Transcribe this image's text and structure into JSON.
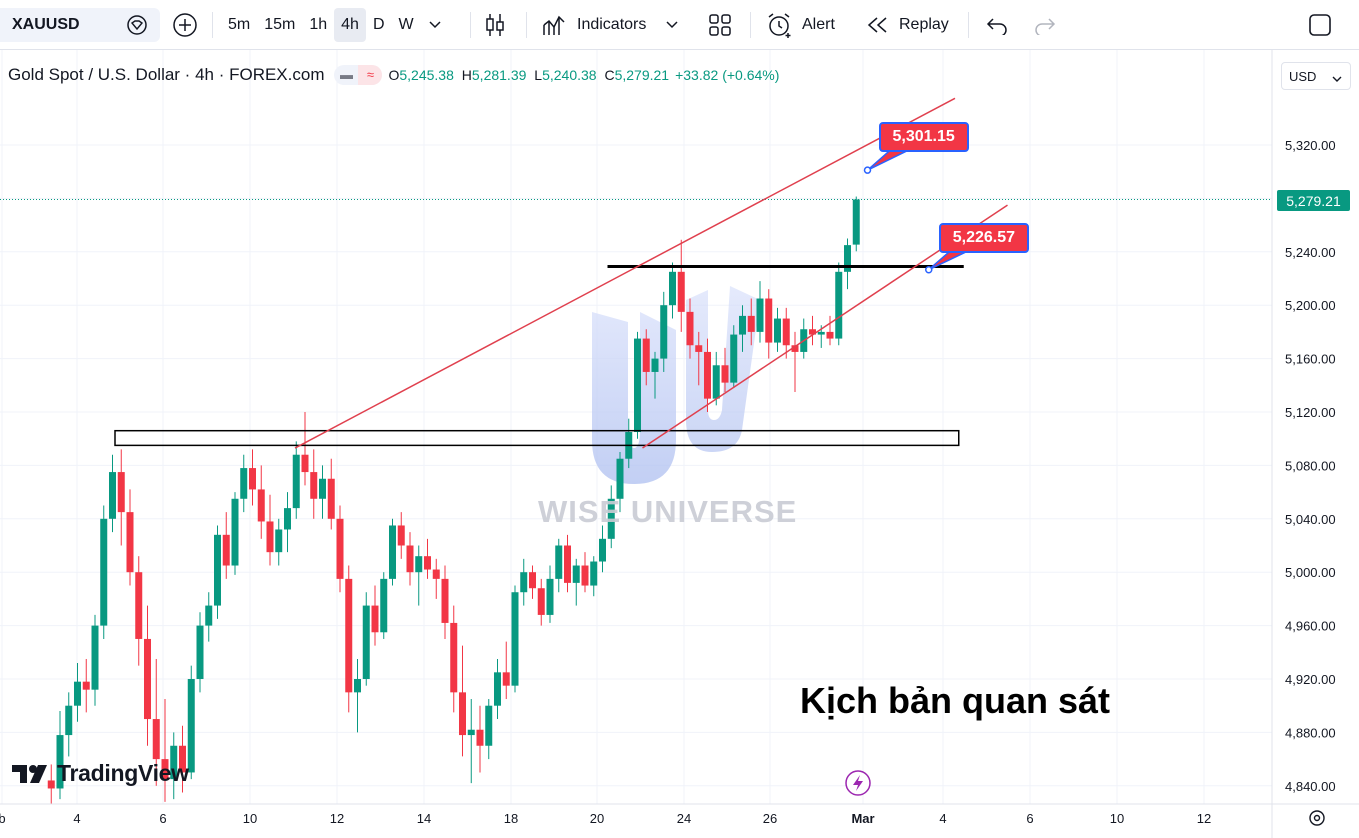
{
  "toolbar": {
    "symbol": "XAUUSD",
    "timeframes": [
      "5m",
      "15m",
      "1h",
      "4h",
      "D",
      "W"
    ],
    "active_timeframe": "4h",
    "indicators_label": "Indicators",
    "alert_label": "Alert",
    "replay_label": "Replay"
  },
  "legend": {
    "title": "Gold Spot / U.S. Dollar · 4h · FOREX.com",
    "o_label": "O",
    "o_value": "5,245.38",
    "h_label": "H",
    "h_value": "5,281.39",
    "l_label": "L",
    "l_value": "5,240.38",
    "c_label": "C",
    "c_value": "5,279.21",
    "change": "+33.82 (+0.64%)"
  },
  "currency": "USD",
  "watermark": "WISE UNIVERSE",
  "annotation_text": "Kịch bản quan sát",
  "branding": "TradingView",
  "colors": {
    "up": "#089981",
    "down": "#f23645",
    "trendline": "#e0404e",
    "accent": "#2962ff"
  },
  "chart_data": {
    "type": "candlestick",
    "timeframe": "4h",
    "x_tick_labels": [
      "b",
      "4",
      "6",
      "10",
      "12",
      "14",
      "18",
      "20",
      "24",
      "26",
      "Mar",
      "4",
      "6",
      "10",
      "12"
    ],
    "y_tick_labels": [
      "5,320.00",
      "5,280.00",
      "5,240.00",
      "5,200.00",
      "5,160.00",
      "5,120.00",
      "5,080.00",
      "5,040.00",
      "5,000.00",
      "4,960.00",
      "4,920.00",
      "4,880.00",
      "4,840.00"
    ],
    "ylim": [
      4827,
      5377
    ],
    "last_price": "5,279.21",
    "series": [
      {
        "x": 0.5,
        "o": 4844,
        "h": 4856,
        "l": 4826,
        "c": 4838
      },
      {
        "x": 1.2,
        "o": 4838,
        "h": 4896,
        "l": 4830,
        "c": 4878
      },
      {
        "x": 1.9,
        "o": 4878,
        "h": 4910,
        "l": 4862,
        "c": 4900
      },
      {
        "x": 2.6,
        "o": 4900,
        "h": 4932,
        "l": 4888,
        "c": 4918
      },
      {
        "x": 3.3,
        "o": 4918,
        "h": 4935,
        "l": 4895,
        "c": 4912
      },
      {
        "x": 4.0,
        "o": 4912,
        "h": 4968,
        "l": 4900,
        "c": 4960
      },
      {
        "x": 4.7,
        "o": 4960,
        "h": 5050,
        "l": 4950,
        "c": 5040
      },
      {
        "x": 5.4,
        "o": 5040,
        "h": 5088,
        "l": 5030,
        "c": 5075
      },
      {
        "x": 6.1,
        "o": 5075,
        "h": 5092,
        "l": 5020,
        "c": 5045
      },
      {
        "x": 6.8,
        "o": 5045,
        "h": 5062,
        "l": 4990,
        "c": 5000
      },
      {
        "x": 7.5,
        "o": 5000,
        "h": 5012,
        "l": 4930,
        "c": 4950
      },
      {
        "x": 8.2,
        "o": 4950,
        "h": 4975,
        "l": 4870,
        "c": 4890
      },
      {
        "x": 8.9,
        "o": 4890,
        "h": 4935,
        "l": 4840,
        "c": 4860
      },
      {
        "x": 9.6,
        "o": 4860,
        "h": 4905,
        "l": 4828,
        "c": 4845
      },
      {
        "x": 10.3,
        "o": 4845,
        "h": 4880,
        "l": 4830,
        "c": 4870
      },
      {
        "x": 11.0,
        "o": 4870,
        "h": 4885,
        "l": 4835,
        "c": 4850
      },
      {
        "x": 11.7,
        "o": 4850,
        "h": 4930,
        "l": 4845,
        "c": 4920
      },
      {
        "x": 12.4,
        "o": 4920,
        "h": 4970,
        "l": 4910,
        "c": 4960
      },
      {
        "x": 13.1,
        "o": 4960,
        "h": 4985,
        "l": 4948,
        "c": 4975
      },
      {
        "x": 13.8,
        "o": 4975,
        "h": 5035,
        "l": 4965,
        "c": 5028
      },
      {
        "x": 14.5,
        "o": 5028,
        "h": 5045,
        "l": 4995,
        "c": 5005
      },
      {
        "x": 15.2,
        "o": 5005,
        "h": 5060,
        "l": 4998,
        "c": 5055
      },
      {
        "x": 15.9,
        "o": 5055,
        "h": 5088,
        "l": 5045,
        "c": 5078
      },
      {
        "x": 16.6,
        "o": 5078,
        "h": 5092,
        "l": 5050,
        "c": 5062
      },
      {
        "x": 17.3,
        "o": 5062,
        "h": 5080,
        "l": 5025,
        "c": 5038
      },
      {
        "x": 18.0,
        "o": 5038,
        "h": 5058,
        "l": 5005,
        "c": 5015
      },
      {
        "x": 18.7,
        "o": 5015,
        "h": 5040,
        "l": 5005,
        "c": 5032
      },
      {
        "x": 19.4,
        "o": 5032,
        "h": 5060,
        "l": 5015,
        "c": 5048
      },
      {
        "x": 20.1,
        "o": 5048,
        "h": 5098,
        "l": 5040,
        "c": 5088
      },
      {
        "x": 20.8,
        "o": 5088,
        "h": 5120,
        "l": 5065,
        "c": 5075
      },
      {
        "x": 21.5,
        "o": 5075,
        "h": 5092,
        "l": 5040,
        "c": 5055
      },
      {
        "x": 22.2,
        "o": 5055,
        "h": 5080,
        "l": 5040,
        "c": 5070
      },
      {
        "x": 22.9,
        "o": 5070,
        "h": 5085,
        "l": 5032,
        "c": 5040
      },
      {
        "x": 23.6,
        "o": 5040,
        "h": 5050,
        "l": 4985,
        "c": 4995
      },
      {
        "x": 24.3,
        "o": 4995,
        "h": 5005,
        "l": 4895,
        "c": 4910
      },
      {
        "x": 25.0,
        "o": 4910,
        "h": 4935,
        "l": 4880,
        "c": 4920
      },
      {
        "x": 25.7,
        "o": 4920,
        "h": 4985,
        "l": 4915,
        "c": 4975
      },
      {
        "x": 26.4,
        "o": 4975,
        "h": 4990,
        "l": 4945,
        "c": 4955
      },
      {
        "x": 27.1,
        "o": 4955,
        "h": 5000,
        "l": 4950,
        "c": 4995
      },
      {
        "x": 27.8,
        "o": 4995,
        "h": 5040,
        "l": 4990,
        "c": 5035
      },
      {
        "x": 28.5,
        "o": 5035,
        "h": 5045,
        "l": 5010,
        "c": 5020
      },
      {
        "x": 29.2,
        "o": 5020,
        "h": 5030,
        "l": 4990,
        "c": 5000
      },
      {
        "x": 29.9,
        "o": 5000,
        "h": 5020,
        "l": 4975,
        "c": 5012
      },
      {
        "x": 30.6,
        "o": 5012,
        "h": 5025,
        "l": 4995,
        "c": 5002
      },
      {
        "x": 31.3,
        "o": 5002,
        "h": 5010,
        "l": 4980,
        "c": 4995
      },
      {
        "x": 32.0,
        "o": 4995,
        "h": 5005,
        "l": 4950,
        "c": 4962
      },
      {
        "x": 32.7,
        "o": 4962,
        "h": 4975,
        "l": 4895,
        "c": 4910
      },
      {
        "x": 33.4,
        "o": 4910,
        "h": 4945,
        "l": 4862,
        "c": 4878
      },
      {
        "x": 34.1,
        "o": 4878,
        "h": 4905,
        "l": 4842,
        "c": 4882
      },
      {
        "x": 34.8,
        "o": 4882,
        "h": 4900,
        "l": 4850,
        "c": 4870
      },
      {
        "x": 35.5,
        "o": 4870,
        "h": 4905,
        "l": 4860,
        "c": 4900
      },
      {
        "x": 36.2,
        "o": 4900,
        "h": 4935,
        "l": 4890,
        "c": 4925
      },
      {
        "x": 36.9,
        "o": 4925,
        "h": 4948,
        "l": 4905,
        "c": 4915
      },
      {
        "x": 37.6,
        "o": 4915,
        "h": 4990,
        "l": 4910,
        "c": 4985
      },
      {
        "x": 38.3,
        "o": 4985,
        "h": 5010,
        "l": 4975,
        "c": 5000
      },
      {
        "x": 39.0,
        "o": 5000,
        "h": 5005,
        "l": 4980,
        "c": 4988
      },
      {
        "x": 39.7,
        "o": 4988,
        "h": 4995,
        "l": 4960,
        "c": 4968
      },
      {
        "x": 40.4,
        "o": 4968,
        "h": 5005,
        "l": 4962,
        "c": 4995
      },
      {
        "x": 41.1,
        "o": 4995,
        "h": 5025,
        "l": 4985,
        "c": 5020
      },
      {
        "x": 41.8,
        "o": 5020,
        "h": 5028,
        "l": 4985,
        "c": 4992
      },
      {
        "x": 42.5,
        "o": 4992,
        "h": 5010,
        "l": 4975,
        "c": 5005
      },
      {
        "x": 43.2,
        "o": 5005,
        "h": 5015,
        "l": 4985,
        "c": 4990
      },
      {
        "x": 43.9,
        "o": 4990,
        "h": 5012,
        "l": 4982,
        "c": 5008
      },
      {
        "x": 44.6,
        "o": 5008,
        "h": 5035,
        "l": 5000,
        "c": 5025
      },
      {
        "x": 45.3,
        "o": 5025,
        "h": 5065,
        "l": 5018,
        "c": 5055
      },
      {
        "x": 46.0,
        "o": 5055,
        "h": 5090,
        "l": 5045,
        "c": 5085
      },
      {
        "x": 46.7,
        "o": 5085,
        "h": 5115,
        "l": 5078,
        "c": 5105
      },
      {
        "x": 47.4,
        "o": 5105,
        "h": 5180,
        "l": 5100,
        "c": 5175
      },
      {
        "x": 48.1,
        "o": 5175,
        "h": 5182,
        "l": 5140,
        "c": 5150
      },
      {
        "x": 48.8,
        "o": 5150,
        "h": 5165,
        "l": 5130,
        "c": 5160
      },
      {
        "x": 49.5,
        "o": 5160,
        "h": 5210,
        "l": 5150,
        "c": 5200
      },
      {
        "x": 50.2,
        "o": 5200,
        "h": 5232,
        "l": 5190,
        "c": 5225
      },
      {
        "x": 50.9,
        "o": 5225,
        "h": 5249,
        "l": 5180,
        "c": 5195
      },
      {
        "x": 51.6,
        "o": 5195,
        "h": 5205,
        "l": 5160,
        "c": 5170
      },
      {
        "x": 52.3,
        "o": 5170,
        "h": 5180,
        "l": 5140,
        "c": 5165
      },
      {
        "x": 53.0,
        "o": 5165,
        "h": 5175,
        "l": 5120,
        "c": 5130
      },
      {
        "x": 53.7,
        "o": 5130,
        "h": 5165,
        "l": 5125,
        "c": 5155
      },
      {
        "x": 54.4,
        "o": 5155,
        "h": 5168,
        "l": 5135,
        "c": 5142
      },
      {
        "x": 55.1,
        "o": 5142,
        "h": 5185,
        "l": 5138,
        "c": 5178
      },
      {
        "x": 55.8,
        "o": 5178,
        "h": 5200,
        "l": 5165,
        "c": 5192
      },
      {
        "x": 56.5,
        "o": 5192,
        "h": 5205,
        "l": 5170,
        "c": 5180
      },
      {
        "x": 57.2,
        "o": 5180,
        "h": 5218,
        "l": 5172,
        "c": 5205
      },
      {
        "x": 57.9,
        "o": 5205,
        "h": 5212,
        "l": 5160,
        "c": 5172
      },
      {
        "x": 58.6,
        "o": 5172,
        "h": 5198,
        "l": 5165,
        "c": 5190
      },
      {
        "x": 59.3,
        "o": 5190,
        "h": 5198,
        "l": 5160,
        "c": 5170
      },
      {
        "x": 60.0,
        "o": 5170,
        "h": 5180,
        "l": 5135,
        "c": 5165
      },
      {
        "x": 60.7,
        "o": 5165,
        "h": 5190,
        "l": 5160,
        "c": 5182
      },
      {
        "x": 61.4,
        "o": 5182,
        "h": 5192,
        "l": 5170,
        "c": 5178
      },
      {
        "x": 62.1,
        "o": 5178,
        "h": 5185,
        "l": 5168,
        "c": 5180
      },
      {
        "x": 62.8,
        "o": 5180,
        "h": 5192,
        "l": 5170,
        "c": 5175
      },
      {
        "x": 63.5,
        "o": 5175,
        "h": 5232,
        "l": 5170,
        "c": 5225
      },
      {
        "x": 64.2,
        "o": 5225,
        "h": 5250,
        "l": 5212,
        "c": 5245
      },
      {
        "x": 64.9,
        "o": 5245.38,
        "h": 5281.39,
        "l": 5240.38,
        "c": 5279.21
      }
    ],
    "drawings": {
      "upper_trendline": {
        "from": {
          "x": 20.0,
          "y": 5093
        },
        "to": {
          "x": 72.8,
          "y": 5355
        },
        "label": "5,301.15",
        "anchor": {
          "x": 65.8,
          "y": 5301.15
        }
      },
      "lower_trendline": {
        "from": {
          "x": 47.8,
          "y": 5093
        },
        "to": {
          "x": 77.0,
          "y": 5275
        },
        "label": "5,226.57",
        "anchor": {
          "x": 70.7,
          "y": 5226.57
        }
      },
      "resistance_line": {
        "y": 5229,
        "x_from": 45.0,
        "x_to": 73.5
      },
      "support_zone": {
        "y_top": 5106,
        "y_bottom": 5095,
        "x_from": 5.6,
        "x_to": 73.1
      }
    }
  }
}
